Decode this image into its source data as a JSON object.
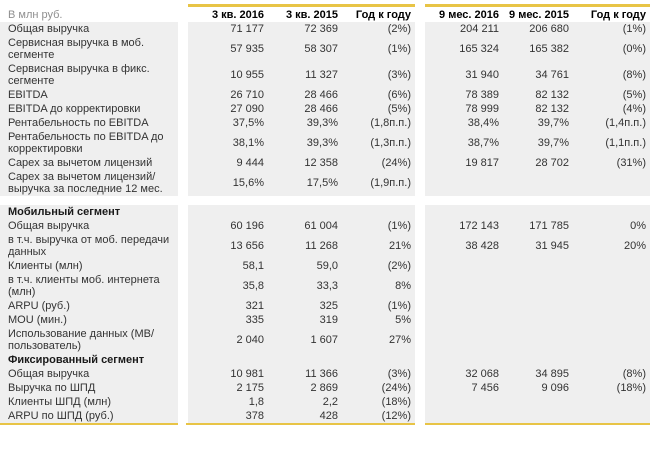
{
  "colors": {
    "accent_line": "#e8c446",
    "row_background": "#efefef",
    "header_text": "#000000",
    "unit_label_text": "#8f8f8f",
    "body_text": "#333333"
  },
  "table": {
    "unit_label": "В млн руб.",
    "columns": [
      "3 кв. 2016",
      "3 кв. 2015",
      "Год к году",
      "9 мес. 2016",
      "9 мес. 2015",
      "Год к году"
    ],
    "rows": [
      {
        "type": "data",
        "label": "Общая выручка",
        "values": [
          "71 177",
          "72 369",
          "(2%)",
          "204 211",
          "206 680",
          "(1%)"
        ]
      },
      {
        "type": "data",
        "label": "Сервисная выручка в моб. сегменте",
        "values": [
          "57 935",
          "58 307",
          "(1%)",
          "165 324",
          "165 382",
          "(0%)"
        ]
      },
      {
        "type": "data",
        "label": "Сервисная выручка в фикс. сегменте",
        "values": [
          "10 955",
          "11 327",
          "(3%)",
          "31 940",
          "34 761",
          "(8%)"
        ]
      },
      {
        "type": "data",
        "label": "EBITDA",
        "values": [
          "26 710",
          "28 466",
          "(6%)",
          "78 389",
          "82 132",
          "(5%)"
        ]
      },
      {
        "type": "data",
        "label": "EBITDA до корректировки",
        "values": [
          "27 090",
          "28 466",
          "(5%)",
          "78 999",
          "82 132",
          "(4%)"
        ]
      },
      {
        "type": "data",
        "label": "Рентабельность по EBITDA",
        "values": [
          "37,5%",
          "39,3%",
          "(1,8п.п.)",
          "38,4%",
          "39,7%",
          "(1,4п.п.)"
        ]
      },
      {
        "type": "data",
        "label": "Рентабельность по EBITDA до корректировки",
        "values": [
          "38,1%",
          "39,3%",
          "(1,3п.п.)",
          "38,7%",
          "39,7%",
          "(1,1п.п.)"
        ]
      },
      {
        "type": "data",
        "label": "Capex за вычетом лицензий",
        "values": [
          "9 444",
          "12 358",
          "(24%)",
          "19 817",
          "28 702",
          "(31%)"
        ]
      },
      {
        "type": "data",
        "label": "Capex за вычетом лицензий/выручка за последние 12 мес.",
        "values": [
          "15,6%",
          "17,5%",
          "(1,9п.п.)",
          "",
          "",
          ""
        ]
      },
      {
        "type": "spacer"
      },
      {
        "type": "section",
        "label": "Мобильный сегмент"
      },
      {
        "type": "data",
        "label": "Общая выручка",
        "values": [
          "60 196",
          "61 004",
          "(1%)",
          "172 143",
          "171 785",
          "0%"
        ]
      },
      {
        "type": "data",
        "label": "в т.ч. выручка от моб. передачи данных",
        "values": [
          "13 656",
          "11 268",
          "21%",
          "38 428",
          "31 945",
          "20%"
        ]
      },
      {
        "type": "data",
        "label": "Клиенты (млн)",
        "values": [
          "58,1",
          "59,0",
          "(2%)",
          "",
          "",
          ""
        ]
      },
      {
        "type": "data",
        "label": "в т.ч. клиенты моб. интернета (млн)",
        "values": [
          "35,8",
          "33,3",
          "8%",
          "",
          "",
          ""
        ]
      },
      {
        "type": "data",
        "label": "ARPU (руб.)",
        "values": [
          "321",
          "325",
          "(1%)",
          "",
          "",
          ""
        ]
      },
      {
        "type": "data",
        "label": "MOU (мин.)",
        "values": [
          "335",
          "319",
          "5%",
          "",
          "",
          ""
        ]
      },
      {
        "type": "data",
        "label": "Использование данных (МВ/пользователь)",
        "values": [
          "2 040",
          "1 607",
          "27%",
          "",
          "",
          ""
        ]
      },
      {
        "type": "section",
        "label": "Фиксированный сегмент"
      },
      {
        "type": "data",
        "label": "Общая выручка",
        "values": [
          "10 981",
          "11 366",
          "(3%)",
          "32 068",
          "34 895",
          "(8%)"
        ]
      },
      {
        "type": "data",
        "label": "Выручка по ШПД",
        "values": [
          "2 175",
          "2 869",
          "(24%)",
          "7 456",
          "9 096",
          "(18%)"
        ]
      },
      {
        "type": "data",
        "label": "Клиенты ШПД (млн)",
        "values": [
          "1,8",
          "2,2",
          "(18%)",
          "",
          "",
          ""
        ]
      },
      {
        "type": "data",
        "label": "ARPU по ШПД (руб.)",
        "values": [
          "378",
          "428",
          "(12%)",
          "",
          "",
          ""
        ]
      }
    ]
  }
}
